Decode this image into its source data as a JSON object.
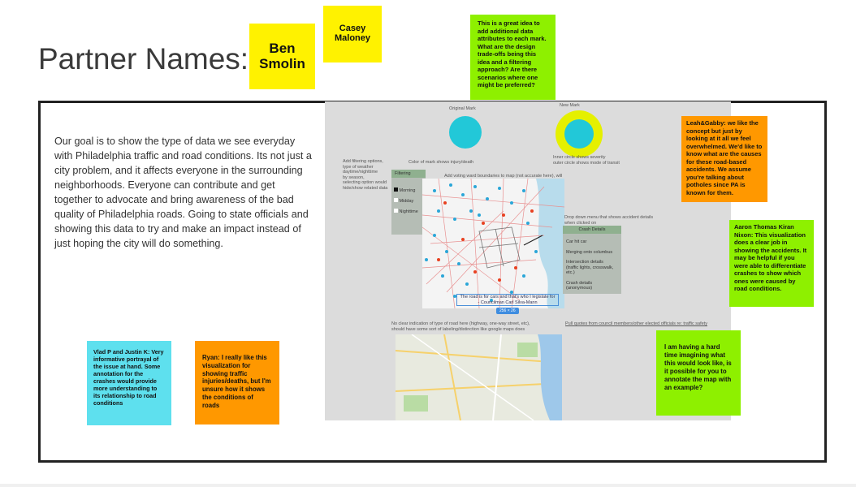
{
  "title": "Partner Names:",
  "partners": [
    {
      "name": "Ben\nSmolin"
    },
    {
      "name": "Casey\nMaloney"
    }
  ],
  "goal_text": "Our goal is to show the type of data we see everyday with Philadelphia traffic and road conditions. Its not just a city problem, and it affects everyone in the surrounding neighborhoods. Everyone can contribute and get together to advocate and bring awareness of the bad quality of Philadelphia roads. Going to state officials and showing this data to try and make an impact instead of just hoping the city will do something.",
  "mockup": {
    "original_mark": "Original Mark",
    "new_mark": "New Mark",
    "color_note": "Color of mark shows injury/death",
    "circle_note": "Inner circle shows severity\nouter circle shows mode of transit",
    "filter_note": "Add filtering options,\ntype of weather\ndaytime/nighttime\nby season,\nselecting option would\nhide/show related data",
    "voting_note": "Add voting ward boundaries to map (not accurate here), will",
    "filter_panel": {
      "header": "Filtering",
      "options": [
        "Morning",
        "Midday",
        "Nighttime"
      ]
    },
    "dropdown_note": "Drop down menu that shows accident details\nwhen clicked on",
    "crash_panel": {
      "header": "Crash Details",
      "items": [
        "Car hit car",
        "Merging onto columbus",
        "Intersection details\n(traffic lights, crosswalk,\netc.)",
        "Crash details (anonymous)"
      ]
    },
    "quote": "The road is for cars and that's who I legislate for\n- Councilman Carl Silva-Mann",
    "dimension_badge": "256 × 26",
    "road_note": "No clear indication of type of road here (highway, one-way street, etc),\nshould have some sort of labeling/distinction like google maps does",
    "pull_quotes": "Pull quotes from council members/other elected officials re: traffic safety"
  },
  "notes": {
    "green_top": "This is a great idea to add additional data attributes to each mark.  What are the design trade-offs being this idea and a filtering approach? Are there scenarios where one might be preferred?",
    "orange_right": "Leah&Gabby: we like the concept but just by looking at it all we feel overwhelmed. We'd like to know what are the causes for these road-based accidents. We assume you're talking about potholes since PA is known for them.",
    "green_right": "Aaron Thomas Kiran Nixon: This visualization does a clear job in showing the accidents. It may be helpful if you were able to differentiate crashes to show which ones were caused by road conditions.",
    "green_bottom": "I am having a hard time imagining what this would look like, is it possible for you to annotate the map with an example?",
    "cyan_bottom": "Vlad P and Justin K: Very informative portrayal of the issue at hand. Some annotation for the crashes would provide more understanding to its relationship to road conditions",
    "orange_bottom": "Ryan: I really like this visualization for showing traffic injuries/deaths, but I'm unsure how it shows the conditions of roads"
  },
  "colors": {
    "yellow": "#fff200",
    "green": "#8ef000",
    "orange": "#ff9800",
    "cyan": "#5ee0ee",
    "mark_cyan": "#22c8d8"
  }
}
